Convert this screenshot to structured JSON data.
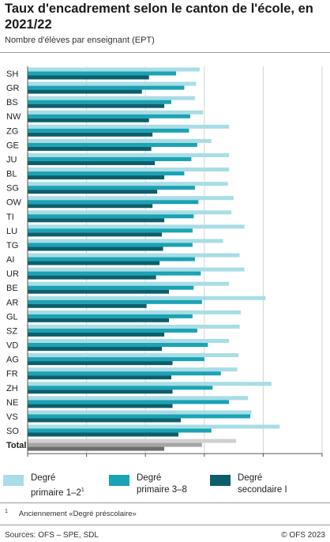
{
  "title": "Taux d'encadrement selon le canton de l'école, en 2021/22",
  "subtitle": "Nombre d'élèves par enseignant (EPT)",
  "legend": [
    {
      "label_line1": "Degré",
      "label_line2": "primaire 1–2",
      "sup": "1",
      "color": "#a8dde6"
    },
    {
      "label_line1": "Degré",
      "label_line2": "primaire 3–8",
      "sup": "",
      "color": "#1aa3b5"
    },
    {
      "label_line1": "Degré",
      "label_line2": "secondaire I",
      "sup": "",
      "color": "#0d5e6b"
    }
  ],
  "footnote": {
    "num": "1",
    "text": "Anciennement «Degré préscolaire»"
  },
  "source": "Sources: OFS – SPE, SDL",
  "copyright": "© OFS 2023",
  "total_colors": [
    "#d0d0d0",
    "#a5a5a5",
    "#6d6d6d"
  ],
  "chart_data": {
    "type": "bar",
    "orientation": "horizontal",
    "xlim": [
      0,
      25
    ],
    "xticks": [
      0,
      5,
      10,
      15,
      20,
      25
    ],
    "grid": true,
    "categories": [
      "SH",
      "GR",
      "BS",
      "NW",
      "ZG",
      "GE",
      "JU",
      "BL",
      "SG",
      "OW",
      "TI",
      "LU",
      "TG",
      "AI",
      "UR",
      "BE",
      "AR",
      "GL",
      "SZ",
      "VD",
      "AG",
      "FR",
      "ZH",
      "NE",
      "VS",
      "SO",
      "Total"
    ],
    "series": [
      {
        "name": "Degré primaire 1–2",
        "color": "#a8dde6",
        "values": [
          14.6,
          14.3,
          14.2,
          14.9,
          17.1,
          15.6,
          17.1,
          17.1,
          17.0,
          17.5,
          17.3,
          18.4,
          16.6,
          18.0,
          18.4,
          17.1,
          20.2,
          18.1,
          18.0,
          17.1,
          17.9,
          17.8,
          20.7,
          18.7,
          19.0,
          21.4,
          17.7
        ]
      },
      {
        "name": "Degré primaire 3–8",
        "color": "#1aa3b5",
        "values": [
          12.6,
          13.3,
          12.2,
          13.8,
          13.7,
          14.4,
          13.9,
          13.3,
          14.2,
          14.5,
          14.1,
          14.0,
          14.0,
          14.2,
          14.7,
          14.1,
          14.8,
          14.0,
          14.4,
          15.3,
          15.0,
          16.4,
          15.7,
          17.1,
          18.9,
          15.6,
          14.8
        ]
      },
      {
        "name": "Degré secondaire I",
        "color": "#0d5e6b",
        "values": [
          10.3,
          9.7,
          11.6,
          10.3,
          10.6,
          10.5,
          10.8,
          11.6,
          11.0,
          10.6,
          11.6,
          11.4,
          11.5,
          11.2,
          10.9,
          12.0,
          10.1,
          12.0,
          11.6,
          11.4,
          12.3,
          12.2,
          12.3,
          12.3,
          13.0,
          12.8,
          11.6
        ]
      }
    ]
  }
}
